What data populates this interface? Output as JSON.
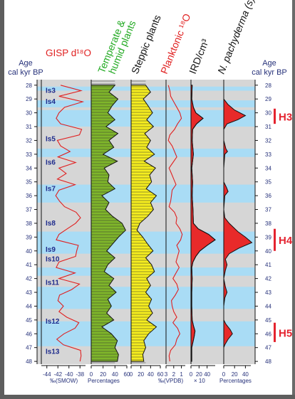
{
  "chart_data": {
    "type": "line",
    "axes": {
      "left_title": [
        "Age",
        "cal kyr BP"
      ],
      "right_title": [
        "Age",
        "cal kyr BP"
      ],
      "age_range": [
        27.6,
        48.2
      ],
      "age_ticks": [
        28,
        29,
        30,
        31,
        32,
        33,
        34,
        35,
        36,
        37,
        38,
        39,
        40,
        41,
        42,
        43,
        44,
        45,
        46,
        47,
        48
      ]
    },
    "column_headers": {
      "gisp": "GISP d¹⁸O",
      "temperate": "Temperate &",
      "temperate2": "humid plants",
      "steppic": "Steppic plants",
      "planktonic": "Planktonic ¹⁸O",
      "ird": "IRD/cm³",
      "pachyderma": "N. pachyderma (s)"
    },
    "interstadials": [
      {
        "label": "Is3",
        "age": 28.4
      },
      {
        "label": "Is4",
        "age": 29.2
      },
      {
        "label": "Is5",
        "age": 31.9
      },
      {
        "label": "Is6",
        "age": 33.6
      },
      {
        "label": "Is7",
        "age": 35.5
      },
      {
        "label": "Is8",
        "age": 38.0
      },
      {
        "label": "Is9",
        "age": 39.9
      },
      {
        "label": "Is10",
        "age": 40.6
      },
      {
        "label": "Is11",
        "age": 42.3
      },
      {
        "label": "Is12",
        "age": 45.1
      },
      {
        "label": "Is13",
        "age": 47.3
      }
    ],
    "warm_bands": [
      [
        28.1,
        28.4
      ],
      [
        29.1,
        29.6
      ],
      [
        29.8,
        31.0
      ],
      [
        32.6,
        33.2
      ],
      [
        35.2,
        36.5
      ],
      [
        38.6,
        40.2
      ],
      [
        41.2,
        41.8
      ],
      [
        42.6,
        44.2
      ],
      [
        45.1,
        46.9
      ]
    ],
    "heinrich_events": [
      {
        "label": "H3",
        "from": 29.7,
        "to": 30.8
      },
      {
        "label": "H4",
        "from": 38.4,
        "to": 40.0
      },
      {
        "label": "H5",
        "from": 45.2,
        "to": 46.6
      }
    ],
    "series": [
      {
        "name": "GISP d¹⁸O",
        "ages": [
          28,
          28.4,
          28.8,
          29.2,
          29.6,
          30,
          30.4,
          30.8,
          31.2,
          31.6,
          32,
          32.4,
          32.8,
          33.2,
          33.6,
          34,
          34.4,
          34.8,
          35.2,
          35.6,
          36,
          36.4,
          36.8,
          37.2,
          37.6,
          38,
          38.4,
          38.8,
          39.2,
          39.6,
          40,
          40.4,
          40.8,
          41.2,
          41.6,
          42,
          42.4,
          42.8,
          43.2,
          43.6,
          44,
          44.4,
          44.8,
          45.2,
          45.6,
          46,
          46.4,
          46.8,
          47.2,
          47.6,
          48
        ],
        "values": [
          -41.5,
          -37.8,
          -41.8,
          -37.5,
          -40.8,
          -41.8,
          -42.3,
          -41.5,
          -37.7,
          -38.1,
          -42.1,
          -41.5,
          -39.8,
          -42.0,
          -38.8,
          -41.8,
          -40.5,
          -42.1,
          -38.9,
          -41.8,
          -42.4,
          -41.7,
          -40.8,
          -38.7,
          -37.9,
          -38.8,
          -40.3,
          -41.8,
          -42.3,
          -38.3,
          -38.6,
          -38.8,
          -41.8,
          -42.3,
          -38.9,
          -41.8,
          -38.1,
          -39.5,
          -41.7,
          -42.0,
          -41.0,
          -41.8,
          -40.4,
          -38.2,
          -38.9,
          -40.9,
          -42.2,
          -41.0,
          -37.9,
          -37.8,
          -38.0
        ]
      },
      {
        "name": "Temperate & humid plants",
        "ages": [
          28,
          28.5,
          29,
          29.5,
          30,
          30.5,
          31,
          31.5,
          32,
          32.5,
          33,
          33.5,
          34,
          34.5,
          35,
          35.5,
          36,
          36.5,
          37,
          37.5,
          38,
          38.5,
          39,
          39.5,
          40,
          40.5,
          41,
          41.5,
          42,
          42.5,
          43,
          43.5,
          44,
          44.5,
          45,
          45.5,
          46,
          46.5,
          47,
          47.5,
          48
        ],
        "values": [
          40,
          30,
          45,
          35,
          28,
          40,
          25,
          45,
          30,
          38,
          20,
          44,
          22,
          30,
          28,
          40,
          18,
          30,
          24,
          36,
          52,
          58,
          46,
          36,
          26,
          40,
          28,
          22,
          38,
          30,
          42,
          28,
          34,
          26,
          38,
          18,
          34,
          44,
          40,
          46,
          44
        ]
      },
      {
        "name": "Steppic plants",
        "ages": [
          28,
          28.5,
          29,
          29.5,
          30,
          30.5,
          31,
          31.5,
          32,
          32.5,
          33,
          33.5,
          34,
          34.5,
          35,
          35.5,
          36,
          36.5,
          37,
          37.5,
          38,
          38.5,
          39,
          39.5,
          40,
          40.5,
          41,
          41.5,
          42,
          42.5,
          43,
          43.5,
          44,
          44.5,
          45,
          45.5,
          46,
          46.5,
          47,
          47.5,
          48
        ],
        "values": [
          30,
          40,
          25,
          35,
          44,
          32,
          46,
          28,
          40,
          32,
          48,
          27,
          50,
          38,
          42,
          31,
          52,
          40,
          46,
          34,
          18,
          12,
          24,
          34,
          45,
          30,
          42,
          48,
          32,
          40,
          30,
          42,
          36,
          44,
          32,
          52,
          36,
          26,
          30,
          24,
          26
        ]
      },
      {
        "name": "Planktonic ¹⁸O",
        "ages": [
          28,
          28.4,
          28.8,
          29.2,
          29.6,
          30,
          30.4,
          30.8,
          31.2,
          31.6,
          32,
          32.4,
          32.8,
          33.2,
          33.6,
          34,
          34.4,
          34.8,
          35.2,
          35.6,
          36,
          36.4,
          36.8,
          37.2,
          37.6,
          38,
          38.4,
          38.8,
          39.2,
          39.6,
          40,
          40.4,
          40.8,
          41.2,
          41.6,
          42,
          42.4,
          42.8,
          43.2,
          43.6,
          44,
          44.4,
          44.8,
          45.2,
          45.6,
          46,
          46.4,
          46.8,
          47.2,
          47.6,
          48
        ],
        "values": [
          2.7,
          2.5,
          2.4,
          2.0,
          1.6,
          1.2,
          1.0,
          1.5,
          1.9,
          2.5,
          2.7,
          2.2,
          1.9,
          1.6,
          2.1,
          2.6,
          2.3,
          2.0,
          1.7,
          2.2,
          2.3,
          2.4,
          2.6,
          1.9,
          1.6,
          1.7,
          1.2,
          0.9,
          1.1,
          1.6,
          1.3,
          1.5,
          1.7,
          1.3,
          1.7,
          2.1,
          1.6,
          1.4,
          1.8,
          2.3,
          2.2,
          2.0,
          1.6,
          2.1,
          1.5,
          1.2,
          1.6,
          1.8,
          2.4,
          2.6,
          2.5
        ]
      },
      {
        "name": "IRD/cm³",
        "ages": [
          28,
          29,
          29.6,
          30,
          30.4,
          30.8,
          31.2,
          32,
          33,
          34,
          35,
          36,
          37,
          38,
          38.4,
          38.8,
          39.2,
          39.6,
          40,
          40.4,
          40.8,
          41.2,
          42,
          43,
          44,
          45,
          45.4,
          45.8,
          46.2,
          46.6,
          47,
          48
        ],
        "values": [
          3,
          2,
          6,
          12,
          30,
          14,
          4,
          3,
          6,
          2,
          4,
          3,
          5,
          6,
          18,
          44,
          60,
          40,
          22,
          12,
          5,
          2,
          3,
          2,
          2,
          3,
          6,
          10,
          8,
          5,
          2,
          2
        ]
      },
      {
        "name": "N. pachyderma (s)",
        "ages": [
          28,
          29,
          29.4,
          29.8,
          30.2,
          30.5,
          30.8,
          31.2,
          32,
          32.6,
          32.8,
          33,
          34,
          35,
          35.4,
          35.7,
          36,
          37,
          37.6,
          38,
          38.6,
          39,
          39.4,
          39.8,
          40.2,
          40.6,
          41,
          41.4,
          42,
          42.6,
          43,
          43.4,
          44,
          45,
          45.3,
          45.7,
          46,
          46.4,
          46.8,
          47,
          48
        ],
        "values": [
          0,
          0,
          8,
          20,
          40,
          26,
          6,
          0,
          0,
          4,
          7,
          2,
          0,
          0,
          5,
          8,
          2,
          0,
          2,
          10,
          26,
          40,
          52,
          28,
          10,
          3,
          6,
          3,
          0,
          3,
          6,
          2,
          0,
          0,
          4,
          12,
          16,
          8,
          2,
          0,
          0
        ]
      }
    ],
    "bottom_labels": {
      "gisp": "‰(SMOW)",
      "temperate": "Percentages",
      "planktonic": "‰(VPDB)",
      "ird": "× 10",
      "pachyderma": "Percentages"
    },
    "gisp_ticks": [
      "-44",
      "-42",
      "-40",
      "-38"
    ],
    "pct_ticks": [
      "0",
      "20",
      "40",
      "60"
    ],
    "steppic_ticks": [
      "0",
      "20",
      "40",
      "60"
    ],
    "planktonic_ticks": [
      "3",
      "2",
      "1"
    ],
    "ird_ticks": [
      "0",
      "20",
      "40"
    ],
    "pachy_ticks": [
      "0",
      "20",
      "40"
    ],
    "colors": {
      "gisp": "#e02020",
      "temperate_title": "#22aa22",
      "planktonic_title": "#e02020",
      "axis_titles": "#26317a",
      "warm_band": "#a9dcf5",
      "cold_band": "#d6d6d6",
      "temperate_fill": "#7fb62a",
      "steppic_fill": "#f6ee1e",
      "event_fill": "#e82a2a",
      "heinrich": "#e4232f",
      "is_label": "#1e2b8c"
    }
  }
}
